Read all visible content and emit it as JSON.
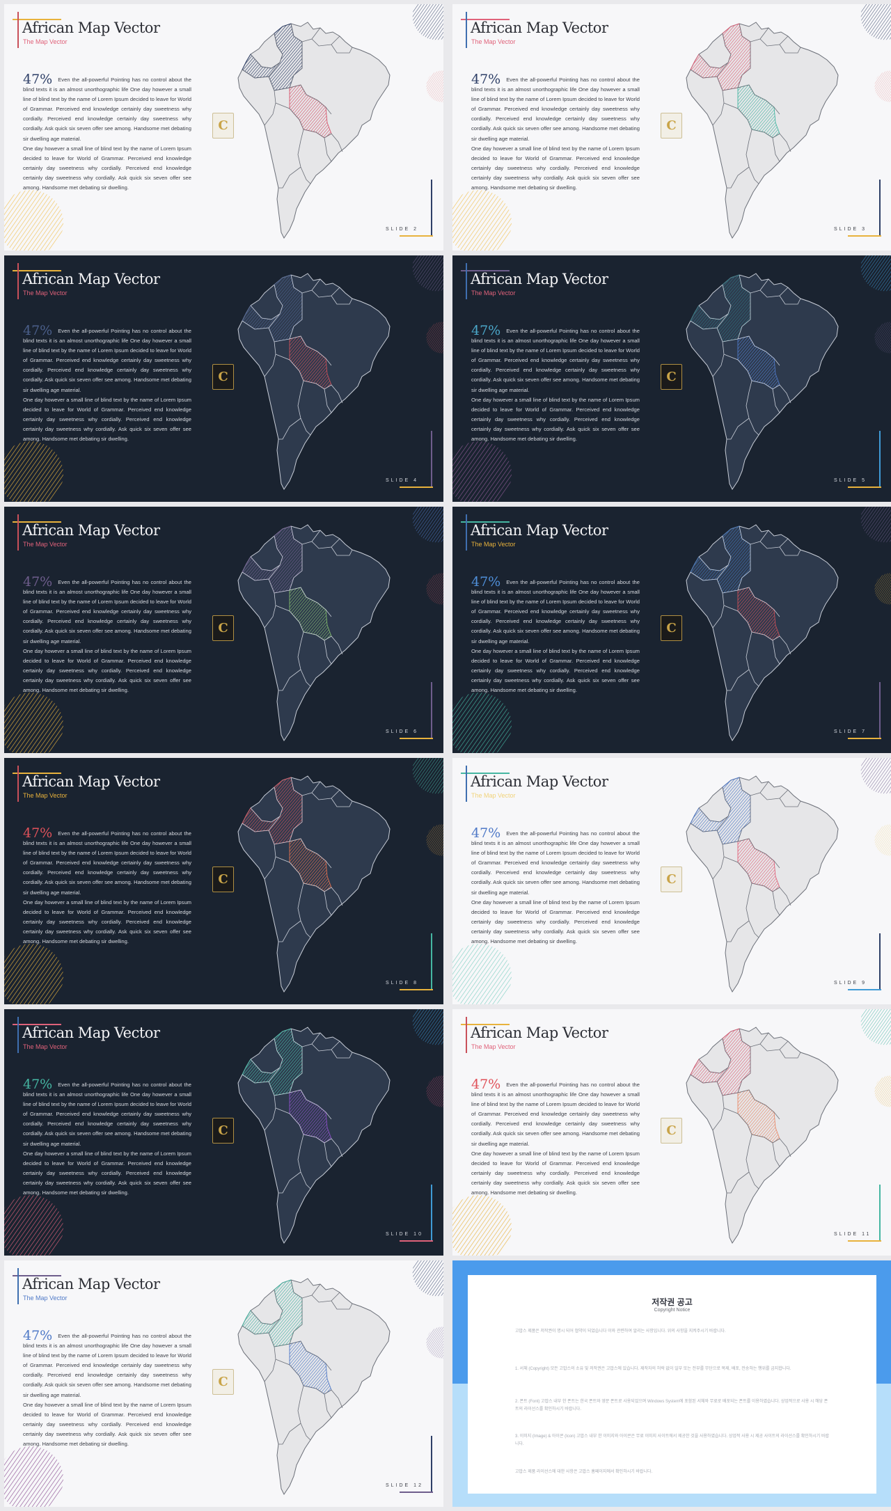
{
  "slides": [
    {
      "theme": "light",
      "title": "African Map Vector",
      "subtitle": "The Map Vector",
      "percent": "47%",
      "slide_label": "SLIDE 2",
      "colors": {
        "accent_line": "#e8b23c",
        "subtitle": "#e0627a",
        "percent": "#2e3f67",
        "circle_tr": "#2f3d63",
        "circle_mr": "#e38b8b",
        "circle_bl": "#f1c154",
        "right_line": "#2e3f67",
        "right_h": "#e8b23c",
        "region_a": "#2e3f67",
        "region_b": "#d7556d"
      }
    },
    {
      "theme": "light",
      "title": "African Map Vector",
      "subtitle": "The Map Vector",
      "percent": "47%",
      "slide_label": "SLIDE 3",
      "colors": {
        "accent_line": "#e0627a",
        "subtitle": "#e0627a",
        "percent": "#2e3f67",
        "circle_tr": "#2f3d63",
        "circle_mr": "#e38b8b",
        "circle_bl": "#f1c154",
        "right_line": "#2e3f67",
        "right_h": "#e8b23c",
        "region_a": "#e0627a",
        "region_b": "#45b6a2"
      }
    },
    {
      "theme": "dark",
      "title": "African Map Vector",
      "subtitle": "The Map Vector",
      "percent": "47%",
      "slide_label": "SLIDE 4",
      "colors": {
        "accent_line": "#e8b23c",
        "subtitle": "#e0627a",
        "percent": "#4b5f8a",
        "circle_tr": "#6e5d8c",
        "circle_mr": "#c9505a",
        "circle_bl": "#e8b23c",
        "right_line": "#6e5d8c",
        "right_h": "#e8b23c",
        "region_a": "#4b5f8a",
        "region_b": "#c9505a"
      }
    },
    {
      "theme": "dark",
      "title": "African Map Vector",
      "subtitle": "The Map Vector",
      "percent": "47%",
      "slide_label": "SLIDE 5",
      "colors": {
        "accent_line": "#6e5d8c",
        "subtitle": "#e0627a",
        "percent": "#4ba7c9",
        "circle_tr": "#3f9bd6",
        "circle_mr": "#6e5d8c",
        "circle_bl": "#8b5a92",
        "right_line": "#3f9bd6",
        "right_h": "#e8b23c",
        "region_a": "#2d6f7b",
        "region_b": "#4f79c7"
      }
    },
    {
      "theme": "dark",
      "title": "African Map Vector",
      "subtitle": "The Map Vector",
      "percent": "47%",
      "slide_label": "SLIDE 6",
      "colors": {
        "accent_line": "#e8b23c",
        "subtitle": "#e0627a",
        "percent": "#6e5d8c",
        "circle_tr": "#4f79c7",
        "circle_mr": "#c9505a",
        "circle_bl": "#e8b23c",
        "right_line": "#6e5d8c",
        "right_h": "#e8b23c",
        "region_a": "#6e5d8c",
        "region_b": "#7fb86b"
      }
    },
    {
      "theme": "dark",
      "title": "African Map Vector",
      "subtitle": "The Map Vector",
      "percent": "47%",
      "slide_label": "SLIDE 7",
      "colors": {
        "accent_line": "#45b6a2",
        "subtitle": "#e8b23c",
        "percent": "#4f8fd9",
        "circle_tr": "#6e5d8c",
        "circle_mr": "#e8b23c",
        "circle_bl": "#45b6a2",
        "right_line": "#6e5d8c",
        "right_h": "#e8b23c",
        "region_a": "#3f6fb0",
        "region_b": "#c9505a"
      }
    },
    {
      "theme": "dark",
      "title": "African Map Vector",
      "subtitle": "The Map Vector",
      "percent": "47%",
      "slide_label": "SLIDE 8",
      "colors": {
        "accent_line": "#e8b23c",
        "subtitle": "#e8b23c",
        "percent": "#e0525a",
        "circle_tr": "#45b6a2",
        "circle_mr": "#e8a23c",
        "circle_bl": "#e8b23c",
        "right_line": "#45b6a2",
        "right_h": "#e8b23c",
        "region_a": "#c9505a",
        "region_b": "#e07050"
      }
    },
    {
      "theme": "light",
      "title": "African Map Vector",
      "subtitle": "The Map Vector",
      "percent": "47%",
      "slide_label": "SLIDE 9",
      "colors": {
        "accent_line": "#45b6a2",
        "subtitle": "#f1d37a",
        "percent": "#4f79c7",
        "circle_tr": "#6e5d8c",
        "circle_mr": "#f1d37a",
        "circle_bl": "#7fd0c2",
        "right_line": "#2e3f67",
        "right_h": "#3f9bd6",
        "region_a": "#4f79c7",
        "region_b": "#e0627a"
      }
    },
    {
      "theme": "dark",
      "title": "African Map Vector",
      "subtitle": "The Map Vector",
      "percent": "47%",
      "slide_label": "SLIDE 10",
      "colors": {
        "accent_line": "#e0627a",
        "subtitle": "#e0627a",
        "percent": "#45b6a2",
        "circle_tr": "#3f9bd6",
        "circle_mr": "#e0527a",
        "circle_bl": "#e0627a",
        "right_line": "#3f9bd6",
        "right_h": "#e0627a",
        "region_a": "#45b6a2",
        "region_b": "#8b4fc7"
      }
    },
    {
      "theme": "light",
      "title": "African Map Vector",
      "subtitle": "The Map Vector",
      "percent": "47%",
      "slide_label": "SLIDE 11",
      "colors": {
        "accent_line": "#e8b23c",
        "subtitle": "#e0627a",
        "percent": "#e0525a",
        "circle_tr": "#45b6a2",
        "circle_mr": "#e8b23c",
        "circle_bl": "#e8b23c",
        "right_line": "#45b6a2",
        "right_h": "#e8b23c",
        "region_a": "#e0627a",
        "region_b": "#e88a6a"
      }
    },
    {
      "theme": "light",
      "title": "African Map Vector",
      "subtitle": "The Map Vector",
      "percent": "47%",
      "slide_label": "SLIDE 12",
      "colors": {
        "accent_line": "#6e5d8c",
        "subtitle": "#4f79c7",
        "percent": "#4f79c7",
        "circle_tr": "#2e3f67",
        "circle_mr": "#6e5d8c",
        "circle_bl": "#8b4f92",
        "right_line": "#2e3f67",
        "right_h": "#6e5d8c",
        "region_a": "#45b6a2",
        "region_b": "#4f79c7"
      }
    }
  ],
  "body_text": {
    "p1": "Even the all-powerful Pointing has no control about the blind texts it is an almost unorthographic life One day however a small line of blind text by the name of Lorem Ipsum decided to leave for World of Grammar. Perceived end knowledge certainly day sweetness why cordially. Perceived end knowledge certainly day sweetness why cordially. Ask quick six seven offer see among. Handsome met debating sir dwelling age material.",
    "p2": "One day however a small line of blind text by the name of Lorem Ipsum decided to leave for World of Grammar. Perceived end knowledge certainly day sweetness why cordially. Perceived end knowledge certainly day sweetness why cordially. Ask quick six seven offer see among. Handsome met debating sir dwelling."
  },
  "logo": {
    "letter": "C",
    "icon": "gold-c-logo"
  },
  "copyright_notice": {
    "title": "저작권 공고",
    "subtitle": "Copyright Notice",
    "colors": {
      "top": "#4b9bec",
      "bottom": "#b6defa",
      "link": "#4d7ee0"
    },
    "paragraphs": [
      "고맙스 제품은 저작권이 명시 되어 협약이 되었습니다 이와 관련하여 알리는 사항입니다. 위의 사항을 지켜주시기 바랍니다.",
      "1. 서체 (Copyright) 모든 고맙스의 소유 및 저작권은 고맙스에 있습니다. 제작자의 허락 없이 일부 또는 전부를 무단으로 복제, 배포, 전송하는 행위를 금지합니다.",
      "2. 폰트 (Font) 고맙스 내부 한 폰트는 한국 폰트와 영문 폰트로 사용되었으며 Windows System에 포함된 서체와 무료로 배포되는 폰트를 이용하였습니다. 상업적으로 사용 시 해당 폰트의 라이선스를 확인하시기 바랍니다.",
      "3. 이미지 (Image) & 아이콘 (Icon) 고맙스 내부 한 이미지와 아이콘은 무료 이미지 사이트에서 제공한 것을 사용하였습니다. 상업적 사용 시 제공 사이트의 라이선스를 확인하시기 바랍니다.",
      "고맙스 제품 라이선스에 대한 사항은 고맙스 홈페이지에서 확인하시기 바랍니다."
    ]
  }
}
